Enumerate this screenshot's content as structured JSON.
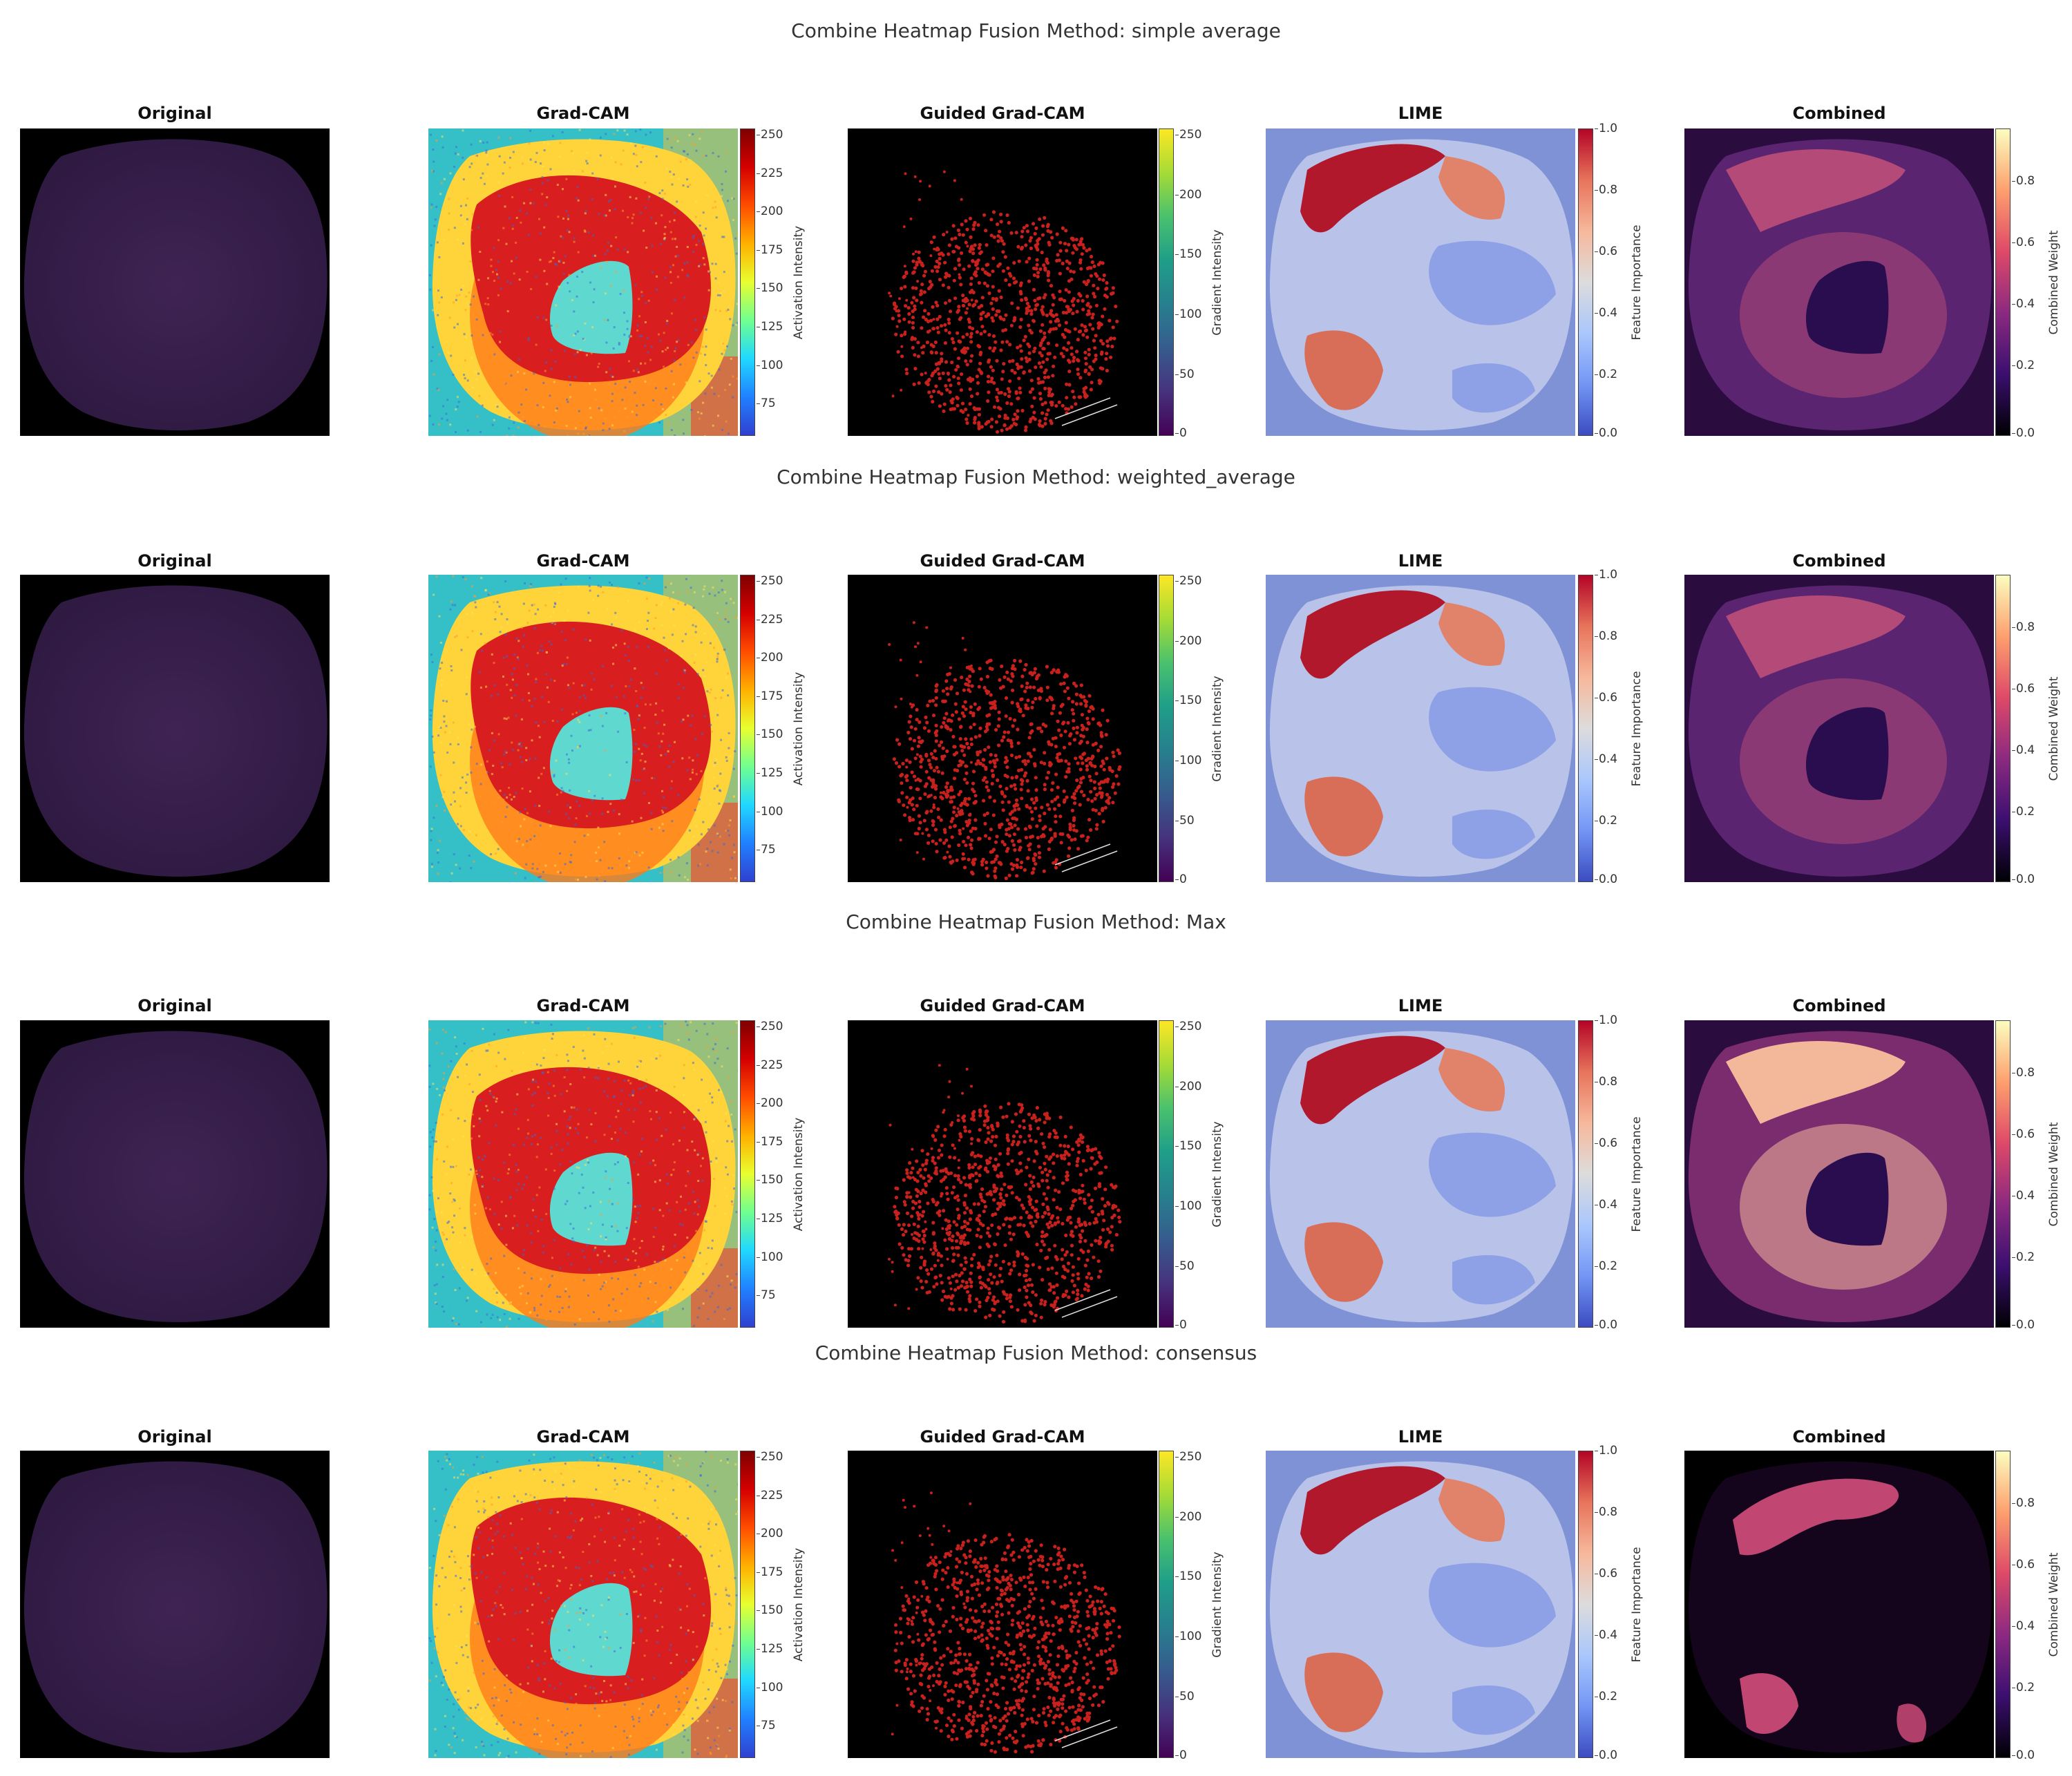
{
  "rows": [
    {
      "title": "Combine Heatmap Fusion Method: simple average",
      "combined_style": "simple"
    },
    {
      "title": "Combine Heatmap Fusion Method: weighted_average",
      "combined_style": "weighted"
    },
    {
      "title": "Combine Heatmap Fusion Method: Max",
      "combined_style": "max"
    },
    {
      "title": "Combine Heatmap Fusion Method: consensus",
      "combined_style": "consensus"
    }
  ],
  "panels": [
    {
      "key": "original",
      "title": "Original",
      "has_colorbar": false
    },
    {
      "key": "gradcam",
      "title": "Grad-CAM",
      "has_colorbar": true,
      "colorbar": {
        "label": "Activation Intensity",
        "ticks": [
          "250",
          "225",
          "200",
          "175",
          "150",
          "125",
          "100",
          "75"
        ],
        "colormap": "jet"
      }
    },
    {
      "key": "guided",
      "title": "Guided Grad-CAM",
      "has_colorbar": true,
      "colorbar": {
        "label": "Gradient Intensity",
        "ticks": [
          "250",
          "200",
          "150",
          "100",
          "50",
          "0"
        ],
        "colormap": "viridis"
      }
    },
    {
      "key": "lime",
      "title": "LIME",
      "has_colorbar": true,
      "colorbar": {
        "label": "Feature Importance",
        "ticks": [
          "1.0",
          "0.8",
          "0.6",
          "0.4",
          "0.2",
          "0.0"
        ],
        "colormap": "coolwarm"
      }
    },
    {
      "key": "combined",
      "title": "Combined",
      "has_colorbar": true,
      "colorbar": {
        "label": "Combined Weight",
        "ticks": [
          "0.8",
          "0.6",
          "0.4",
          "0.2",
          "0.0"
        ],
        "colormap": "magma"
      }
    }
  ]
}
